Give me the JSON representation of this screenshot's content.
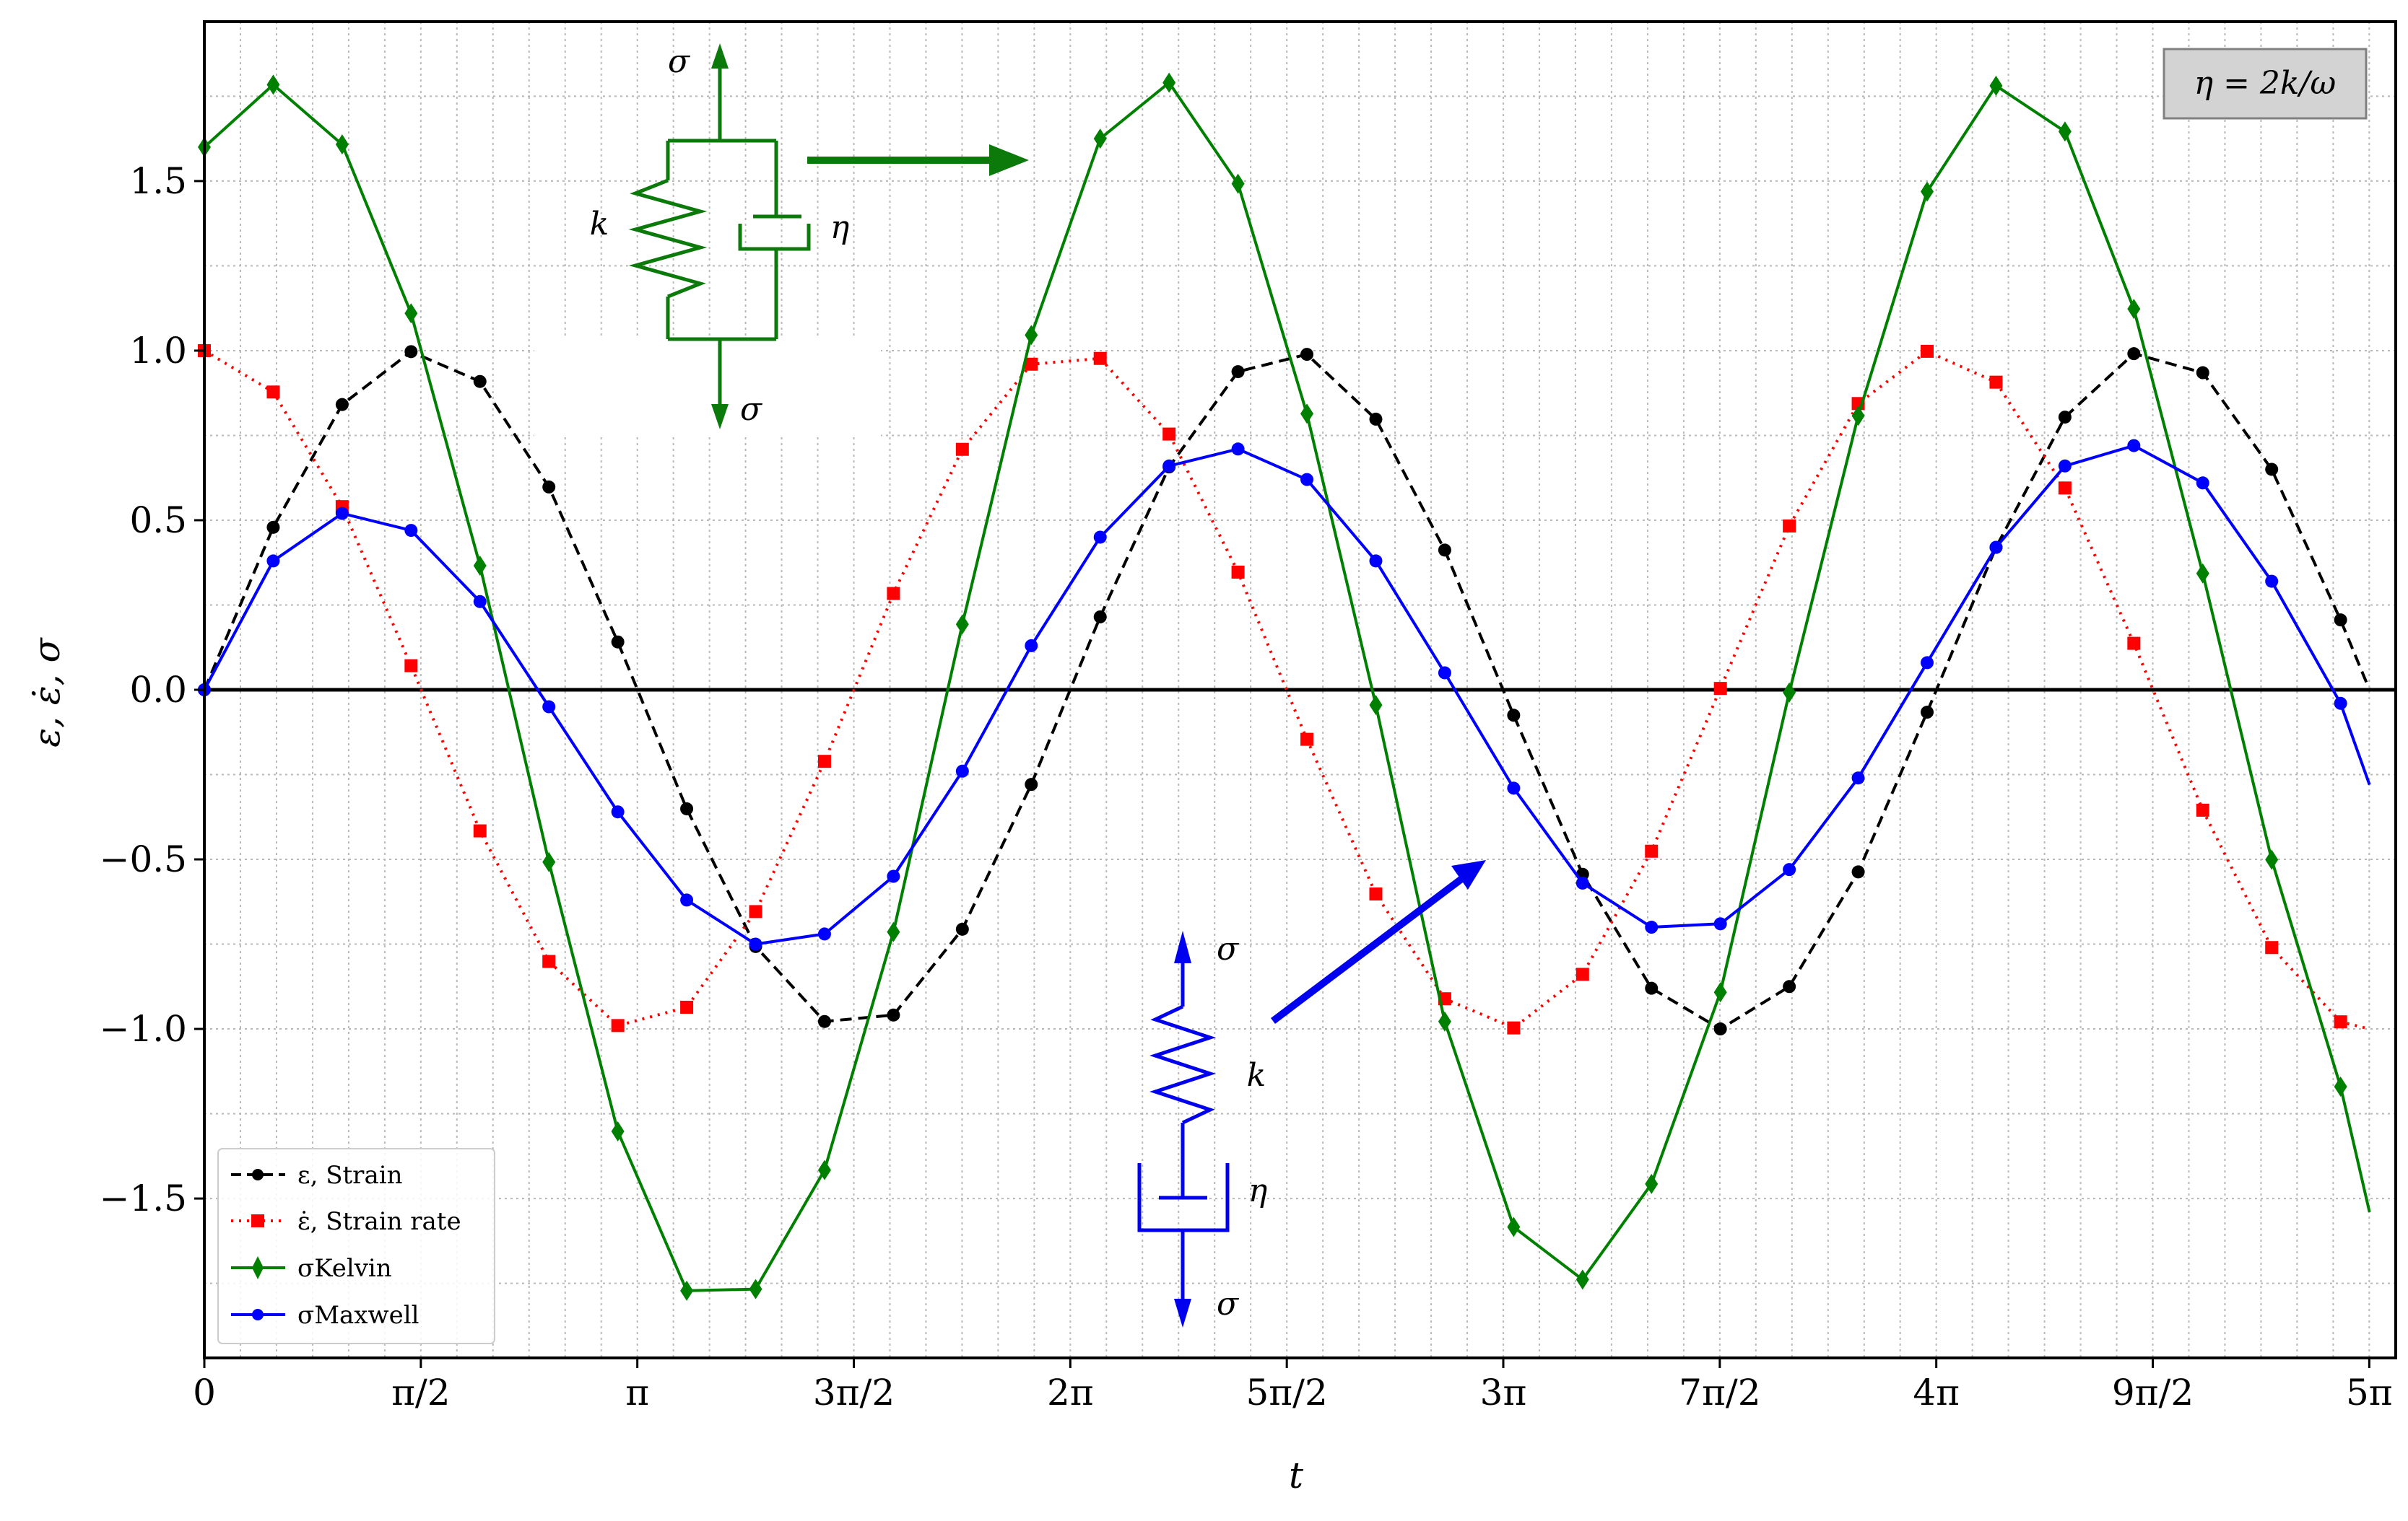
{
  "chart_data": {
    "type": "line",
    "title": "",
    "xlabel": "t",
    "ylabel": "ε, ε̇, σ",
    "xlim": [
      0,
      15.9
    ],
    "ylim": [
      -1.97,
      1.97
    ],
    "grid": "minor dotted",
    "legend_position": "lower-left",
    "x_ticks": [
      {
        "value": 0,
        "label": "0"
      },
      {
        "value": 1.5708,
        "label": "π/2"
      },
      {
        "value": 3.1416,
        "label": "π"
      },
      {
        "value": 4.7124,
        "label": "3π/2"
      },
      {
        "value": 6.2832,
        "label": "2π"
      },
      {
        "value": 7.854,
        "label": "5π/2"
      },
      {
        "value": 9.4248,
        "label": "3π"
      },
      {
        "value": 10.9956,
        "label": "7π/2"
      },
      {
        "value": 12.5664,
        "label": "4π"
      },
      {
        "value": 14.1372,
        "label": "9π/2"
      },
      {
        "value": 15.708,
        "label": "5π"
      }
    ],
    "y_ticks": [
      {
        "value": 1.5,
        "label": "1.5"
      },
      {
        "value": 1.0,
        "label": "1.0"
      },
      {
        "value": 0.5,
        "label": "0.5"
      },
      {
        "value": 0.0,
        "label": "0.0"
      },
      {
        "value": -0.5,
        "label": "−0.5"
      },
      {
        "value": -1.0,
        "label": "−1.0"
      },
      {
        "value": -1.5,
        "label": "−1.5"
      }
    ],
    "series": [
      {
        "name": "ε, Strain",
        "color": "#000000",
        "dash": "dashed",
        "marker": "circle",
        "x": [
          0,
          0.5,
          1,
          1.5,
          2,
          2.5,
          3,
          3.5,
          4,
          4.5,
          5,
          5.5,
          6,
          6.5,
          7,
          7.5,
          8,
          8.5,
          9,
          9.5,
          10,
          10.5,
          11,
          11.5,
          12,
          12.5,
          13,
          13.5,
          14,
          14.5,
          15,
          15.5,
          15.71
        ],
        "y": [
          0,
          0.479,
          0.841,
          0.997,
          0.909,
          0.598,
          0.141,
          -0.351,
          -0.757,
          -0.978,
          -0.959,
          -0.706,
          -0.279,
          0.215,
          0.657,
          0.938,
          0.989,
          0.798,
          0.412,
          -0.075,
          -0.544,
          -0.88,
          -1.0,
          -0.875,
          -0.537,
          -0.066,
          0.42,
          0.804,
          0.991,
          0.935,
          0.65,
          0.206,
          0.0
        ]
      },
      {
        "name": "ε̇, Strain rate",
        "color": "#ff0000",
        "dash": "dotted",
        "marker": "square",
        "x": [
          0,
          0.5,
          1,
          1.5,
          2,
          2.5,
          3,
          3.5,
          4,
          4.5,
          5,
          5.5,
          6,
          6.5,
          7,
          7.5,
          8,
          8.5,
          9,
          9.5,
          10,
          10.5,
          11,
          11.5,
          12,
          12.5,
          13,
          13.5,
          14,
          14.5,
          15,
          15.5,
          15.71
        ],
        "y": [
          1,
          0.878,
          0.54,
          0.071,
          -0.416,
          -0.801,
          -0.99,
          -0.936,
          -0.654,
          -0.211,
          0.284,
          0.709,
          0.96,
          0.977,
          0.754,
          0.347,
          -0.146,
          -0.602,
          -0.911,
          -0.997,
          -0.839,
          -0.476,
          0.004,
          0.483,
          0.844,
          0.998,
          0.907,
          0.595,
          0.137,
          -0.355,
          -0.76,
          -0.979,
          -1.0
        ]
      },
      {
        "name": "σKelvin",
        "color": "#008000",
        "dash": "solid",
        "marker": "diamond",
        "x": [
          0,
          0.5,
          1,
          1.5,
          2,
          2.5,
          3,
          3.5,
          4,
          4.5,
          5,
          5.5,
          6,
          6.5,
          7,
          7.5,
          8,
          8.5,
          9,
          9.5,
          10,
          10.5,
          11,
          11.5,
          12,
          12.5,
          13,
          13.5,
          14,
          14.5,
          15,
          15.5,
          15.71
        ],
        "y": [
          1.6,
          1.784,
          1.608,
          1.11,
          0.366,
          -0.508,
          -1.302,
          -1.772,
          -1.767,
          -1.416,
          -0.714,
          0.193,
          1.046,
          1.625,
          1.79,
          1.492,
          0.814,
          -0.045,
          -0.978,
          -1.584,
          -1.739,
          -1.457,
          -0.892,
          -0.008,
          0.808,
          1.469,
          1.781,
          1.646,
          1.123,
          0.343,
          -0.501,
          -1.17,
          -1.54
        ]
      },
      {
        "name": "σMaxwell",
        "color": "#0000ff",
        "dash": "solid",
        "marker": "circle",
        "x": [
          0,
          0.5,
          1,
          1.5,
          2,
          2.5,
          3,
          3.5,
          4,
          4.5,
          5,
          5.5,
          6,
          6.5,
          7,
          7.5,
          8,
          8.5,
          9,
          9.5,
          10,
          10.5,
          11,
          11.5,
          12,
          12.5,
          13,
          13.5,
          14,
          14.5,
          15,
          15.5,
          15.71
        ],
        "y": [
          0,
          0.38,
          0.52,
          0.47,
          0.26,
          -0.05,
          -0.36,
          -0.62,
          -0.75,
          -0.72,
          -0.55,
          -0.24,
          0.13,
          0.45,
          0.66,
          0.71,
          0.62,
          0.38,
          0.05,
          -0.29,
          -0.57,
          -0.7,
          -0.69,
          -0.53,
          -0.26,
          0.08,
          0.42,
          0.66,
          0.72,
          0.61,
          0.32,
          -0.04,
          -0.28
        ]
      }
    ],
    "annotations": {
      "param_box": "η = 2k/ω",
      "kelvin_sigma_top": "σ",
      "kelvin_sigma_bottom": "σ",
      "kelvin_k": "k",
      "kelvin_eta": "η",
      "maxwell_sigma_top": "σ",
      "maxwell_sigma_bottom": "σ",
      "maxwell_k": "k",
      "maxwell_eta": "η"
    },
    "colors": {
      "strain": "#000000",
      "strain_rate": "#ff0000",
      "kelvin": "#008000",
      "maxwell": "#0000ff",
      "zero_line": "#000000",
      "grid": "#b0b0b0",
      "param_box_fill": "#d3d3d3"
    }
  }
}
